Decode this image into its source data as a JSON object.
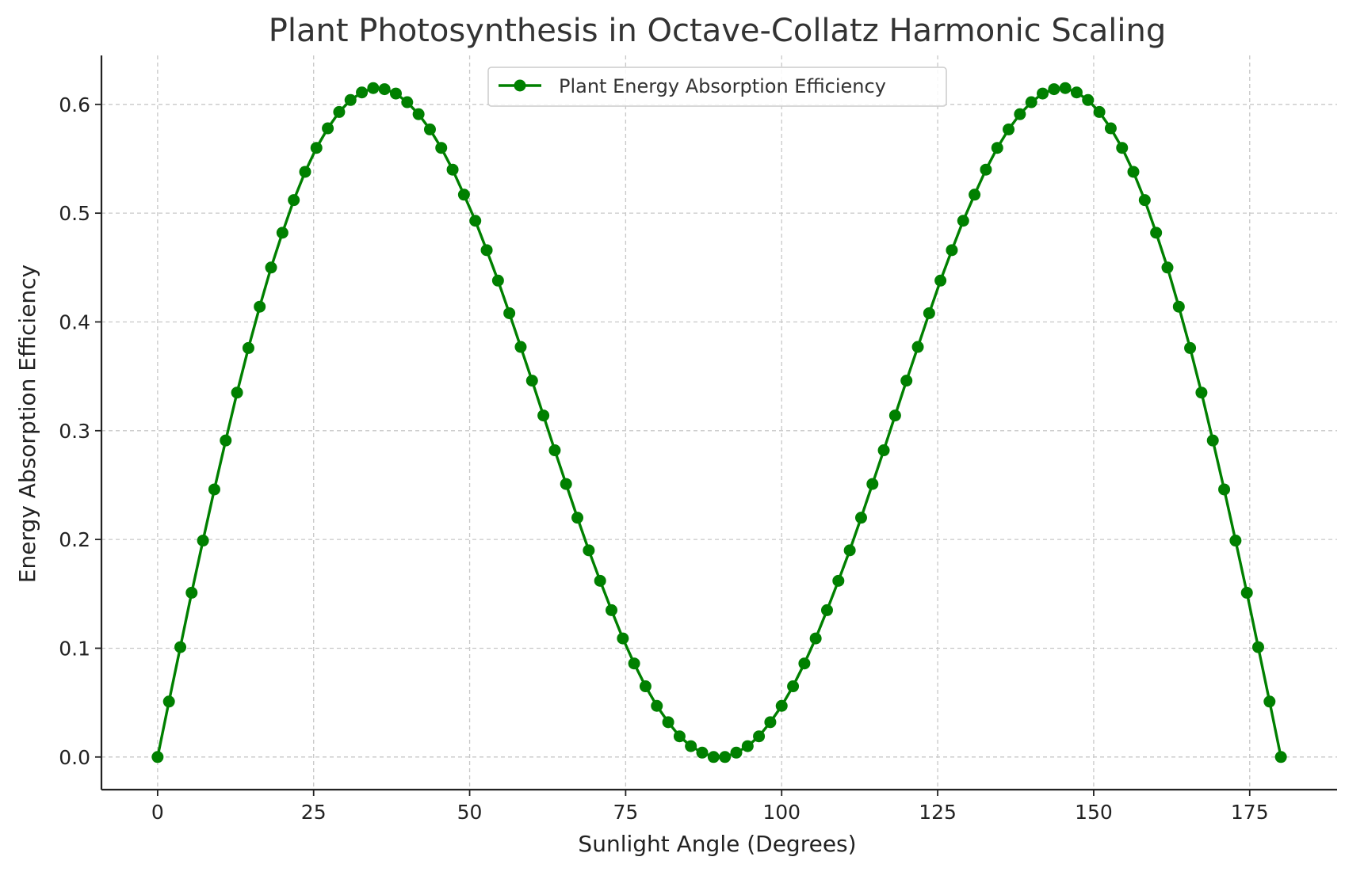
{
  "chart_data": {
    "type": "line",
    "title": "Plant Photosynthesis in Octave-Collatz Harmonic Scaling",
    "xlabel": "Sunlight Angle (Degrees)",
    "ylabel": "Energy Absorption Efficiency",
    "xlim": [
      -9,
      189
    ],
    "ylim": [
      -0.03,
      0.645
    ],
    "xticks": [
      0,
      25,
      50,
      75,
      100,
      125,
      150,
      175
    ],
    "yticks": [
      0.0,
      0.1,
      0.2,
      0.3,
      0.4,
      0.5,
      0.6
    ],
    "ytick_labels": [
      "0.0",
      "0.1",
      "0.2",
      "0.3",
      "0.4",
      "0.5",
      "0.6"
    ],
    "grid": true,
    "legend": "top-center",
    "series": [
      {
        "name": "Plant Energy Absorption Efficiency",
        "color": "#008000",
        "marker": "circle",
        "x": [
          0.0,
          1.82,
          3.64,
          5.45,
          7.27,
          9.09,
          10.91,
          12.73,
          14.55,
          16.36,
          18.18,
          20.0,
          21.82,
          23.64,
          25.45,
          27.27,
          29.09,
          30.91,
          32.73,
          34.55,
          36.36,
          38.18,
          40.0,
          41.82,
          43.64,
          45.45,
          47.27,
          49.09,
          50.91,
          52.73,
          54.55,
          56.36,
          58.18,
          60.0,
          61.82,
          63.64,
          65.45,
          67.27,
          69.09,
          70.91,
          72.73,
          74.55,
          76.36,
          78.18,
          80.0,
          81.82,
          83.64,
          85.45,
          87.27,
          89.09,
          90.91,
          92.73,
          94.55,
          96.36,
          98.18,
          100.0,
          101.82,
          103.64,
          105.45,
          107.27,
          109.09,
          110.91,
          112.73,
          114.55,
          116.36,
          118.18,
          120.0,
          121.82,
          123.64,
          125.45,
          127.27,
          129.09,
          130.91,
          132.73,
          134.55,
          136.36,
          138.18,
          140.0,
          141.82,
          143.64,
          145.45,
          147.27,
          149.09,
          150.91,
          152.73,
          154.55,
          156.36,
          158.18,
          160.0,
          161.82,
          163.64,
          165.45,
          167.27,
          169.09,
          170.91,
          172.73,
          174.55,
          176.36,
          178.18,
          180.0
        ],
        "y": [
          0.0,
          0.051,
          0.101,
          0.151,
          0.199,
          0.246,
          0.291,
          0.335,
          0.376,
          0.414,
          0.45,
          0.482,
          0.512,
          0.538,
          0.56,
          0.578,
          0.593,
          0.604,
          0.611,
          0.615,
          0.614,
          0.61,
          0.602,
          0.591,
          0.577,
          0.56,
          0.54,
          0.517,
          0.493,
          0.466,
          0.438,
          0.408,
          0.377,
          0.346,
          0.314,
          0.282,
          0.251,
          0.22,
          0.19,
          0.162,
          0.135,
          0.109,
          0.086,
          0.065,
          0.047,
          0.032,
          0.019,
          0.01,
          0.004,
          0.0,
          0.0,
          0.004,
          0.01,
          0.019,
          0.032,
          0.047,
          0.065,
          0.086,
          0.109,
          0.135,
          0.162,
          0.19,
          0.22,
          0.251,
          0.282,
          0.314,
          0.346,
          0.377,
          0.408,
          0.438,
          0.466,
          0.493,
          0.517,
          0.54,
          0.56,
          0.577,
          0.591,
          0.602,
          0.61,
          0.614,
          0.615,
          0.611,
          0.604,
          0.593,
          0.578,
          0.56,
          0.538,
          0.512,
          0.482,
          0.45,
          0.414,
          0.376,
          0.335,
          0.291,
          0.246,
          0.199,
          0.151,
          0.101,
          0.051,
          0.0
        ]
      }
    ]
  }
}
